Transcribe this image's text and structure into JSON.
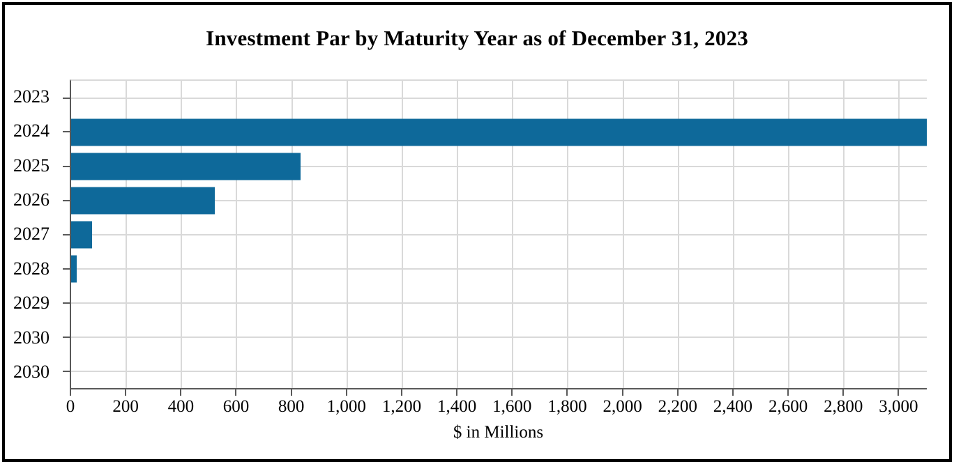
{
  "colors": {
    "bar": "#0e699a",
    "axis": "#595959",
    "gridline": "#d9d9d9",
    "frame_border": "#000000",
    "background": "#ffffff",
    "text": "#000000"
  },
  "chart_data": {
    "type": "bar",
    "orientation": "horizontal",
    "title": "Investment Par by Maturity Year as of December 31, 2023",
    "xlabel": "$ in Millions",
    "ylabel": "",
    "categories": [
      "2023",
      "2024",
      "2025",
      "2026",
      "2027",
      "2028",
      "2029",
      "2030",
      "2030"
    ],
    "values": [
      0,
      3100,
      830,
      520,
      75,
      20,
      0,
      0,
      0
    ],
    "xlim": [
      0,
      3100
    ],
    "x_ticks": [
      0,
      200,
      400,
      600,
      800,
      1000,
      1200,
      1400,
      1600,
      1800,
      2000,
      2200,
      2400,
      2600,
      2800,
      3000
    ],
    "x_tick_labels": [
      "0",
      "200",
      "400",
      "600",
      "800",
      "1,000",
      "1,200",
      "1,400",
      "1,600",
      "1,800",
      "2,000",
      "2,200",
      "2,400",
      "2,600",
      "2,800",
      "3,000"
    ],
    "grid": "both",
    "legend": "none"
  }
}
